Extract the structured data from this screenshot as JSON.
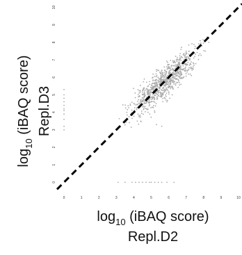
{
  "chart_data": {
    "type": "scatter",
    "title": "",
    "xlabel_main": "log",
    "xlabel_sub": "10",
    "xlabel_rest": " (iBAQ score)",
    "xlabel_line2": "Repl.D2",
    "ylabel_main": "log",
    "ylabel_sub": "10",
    "ylabel_rest": " (iBAQ score)",
    "ylabel_line2": "Repl.D3",
    "xlim": [
      -0.4,
      10.2
    ],
    "ylim": [
      -0.5,
      10.3
    ],
    "xticks": [
      "0",
      "1",
      "2",
      "3",
      "4",
      "5",
      "6",
      "7",
      "8",
      "9",
      "10"
    ],
    "yticks": [
      "0",
      "1",
      "2",
      "3",
      "4",
      "5",
      "6",
      "7",
      "8",
      "9",
      "10"
    ],
    "grid": false,
    "reference_line": {
      "style": "dashed",
      "color": "#000000",
      "from": [
        -0.4,
        -0.4
      ],
      "to": [
        10.2,
        10.2
      ]
    },
    "point_color": "#aaaaaa",
    "cluster": {
      "center": 5.7,
      "x_range": [
        3.4,
        8.4
      ],
      "spread": 0.22,
      "count": 900
    },
    "points_x_zero": [
      [
        0,
        3.0
      ],
      [
        0,
        3.2
      ],
      [
        0,
        3.6
      ],
      [
        0,
        3.9
      ],
      [
        0,
        4.1
      ],
      [
        0,
        4.2
      ],
      [
        0,
        4.4
      ],
      [
        0,
        4.6
      ],
      [
        0,
        4.8
      ],
      [
        0,
        5.0
      ],
      [
        0,
        5.3
      ]
    ],
    "points_y_zero": [
      [
        3.1,
        0
      ],
      [
        3.5,
        0
      ],
      [
        3.9,
        0
      ],
      [
        4.1,
        0
      ],
      [
        4.3,
        0
      ],
      [
        4.5,
        0
      ],
      [
        4.7,
        0
      ],
      [
        4.9,
        0
      ],
      [
        5.0,
        0
      ],
      [
        5.2,
        0
      ],
      [
        5.4,
        0
      ],
      [
        5.6,
        0
      ],
      [
        5.9,
        0
      ],
      [
        6.3,
        0
      ]
    ],
    "scattered_points": [
      [
        3.6,
        4.0
      ],
      [
        3.8,
        4.4
      ],
      [
        4.0,
        4.5
      ],
      [
        4.2,
        3.5
      ],
      [
        4.3,
        3.8
      ],
      [
        4.5,
        5.0
      ],
      [
        4.6,
        5.9
      ],
      [
        4.9,
        5.6
      ],
      [
        5.1,
        6.0
      ],
      [
        5.2,
        4.0
      ],
      [
        5.3,
        3.3
      ],
      [
        5.5,
        6.3
      ],
      [
        5.6,
        3.2
      ],
      [
        5.9,
        4.6
      ],
      [
        6.0,
        6.6
      ],
      [
        6.2,
        5.0
      ],
      [
        6.4,
        7.2
      ],
      [
        6.7,
        5.6
      ],
      [
        7.0,
        7.5
      ],
      [
        7.4,
        6.6
      ],
      [
        7.9,
        7.8
      ],
      [
        8.1,
        7.5
      ],
      [
        8.3,
        8.0
      ],
      [
        8.2,
        8.3
      ]
    ]
  }
}
